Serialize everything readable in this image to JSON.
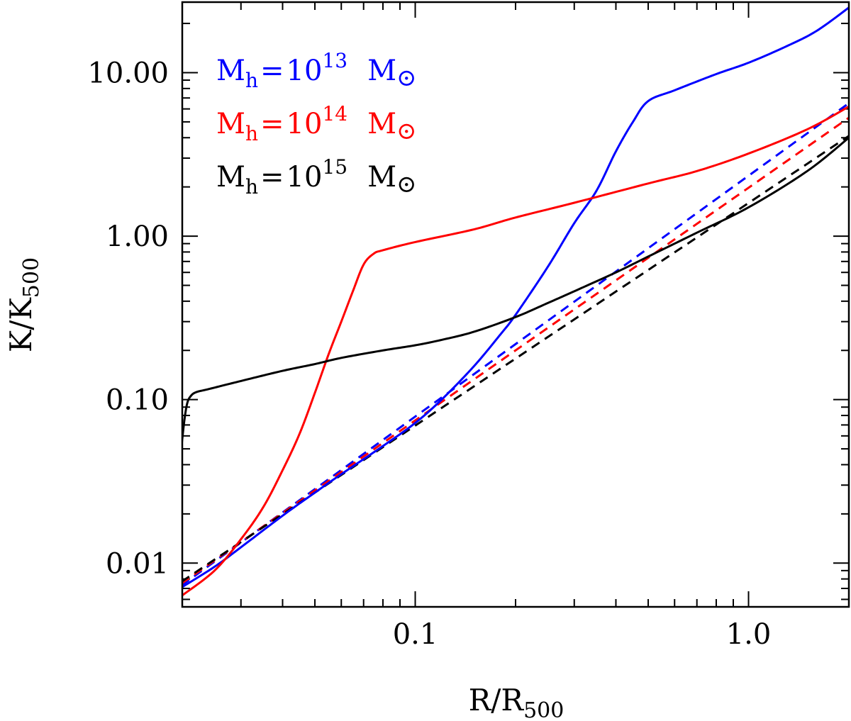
{
  "chart_data": {
    "type": "line",
    "xscale": "log",
    "yscale": "log",
    "xlim": [
      0.02,
      2.0
    ],
    "ylim": [
      0.0054,
      27
    ],
    "xlabel": {
      "base": "R/R",
      "sub": "500"
    },
    "ylabel": {
      "base": "K/K",
      "sub": "500"
    },
    "xticks": [
      {
        "value": 0.1,
        "label": "0.1"
      },
      {
        "value": 1.0,
        "label": "1.0"
      }
    ],
    "yticks": [
      {
        "value": 0.01,
        "label": "0.01"
      },
      {
        "value": 0.1,
        "label": "0.10"
      },
      {
        "value": 1.0,
        "label": "1.00"
      },
      {
        "value": 10.0,
        "label": "10.00"
      }
    ],
    "legend": {
      "location": "top-left",
      "entries": [
        {
          "name": "M_h = 10^13 M_sun",
          "m": "M",
          "msub": "h",
          "eq": "=",
          "base": "10",
          "exp": "13",
          "unit": "M",
          "sun": "⊙",
          "color": "#0000ff"
        },
        {
          "name": "M_h = 10^14 M_sun",
          "m": "M",
          "msub": "h",
          "eq": "=",
          "base": "10",
          "exp": "14",
          "unit": "M",
          "sun": "⊙",
          "color": "#ff0000"
        },
        {
          "name": "M_h = 10^15 M_sun",
          "m": "M",
          "msub": "h",
          "eq": "=",
          "base": "10",
          "exp": "15",
          "unit": "M",
          "sun": "⊙",
          "color": "#000000"
        }
      ]
    },
    "series": [
      {
        "name": "M_h = 10^13 M_sun",
        "color": "#0000ff",
        "style": "solid",
        "x": [
          0.0199,
          0.025,
          0.03,
          0.04,
          0.05,
          0.06,
          0.08,
          0.1,
          0.12,
          0.15,
          0.18,
          0.2,
          0.25,
          0.3,
          0.35,
          0.4,
          0.45,
          0.5,
          0.6,
          0.8,
          1.0,
          1.3,
          1.6,
          2.0
        ],
        "y": [
          0.0071,
          0.0095,
          0.0125,
          0.0195,
          0.027,
          0.035,
          0.052,
          0.072,
          0.1,
          0.16,
          0.25,
          0.33,
          0.65,
          1.2,
          1.9,
          3.3,
          5.0,
          6.7,
          7.8,
          9.8,
          11.5,
          14.5,
          18.0,
          25.0
        ]
      },
      {
        "name": "M_h = 10^14 M_sun",
        "color": "#ff0000",
        "style": "solid",
        "x": [
          0.0199,
          0.025,
          0.03,
          0.035,
          0.04,
          0.045,
          0.05,
          0.055,
          0.06,
          0.065,
          0.07,
          0.075,
          0.08,
          0.1,
          0.15,
          0.2,
          0.3,
          0.5,
          0.7,
          1.0,
          1.5,
          2.0
        ],
        "y": [
          0.0063,
          0.009,
          0.014,
          0.022,
          0.037,
          0.062,
          0.11,
          0.19,
          0.3,
          0.46,
          0.67,
          0.78,
          0.82,
          0.92,
          1.1,
          1.3,
          1.6,
          2.1,
          2.5,
          3.2,
          4.5,
          6.2
        ]
      },
      {
        "name": "M_h = 10^15 M_sun",
        "color": "#000000",
        "style": "solid",
        "x": [
          0.0199,
          0.0203,
          0.0207,
          0.0212,
          0.022,
          0.024,
          0.03,
          0.04,
          0.05,
          0.06,
          0.08,
          0.1,
          0.12,
          0.15,
          0.2,
          0.25,
          0.3,
          0.4,
          0.5,
          0.7,
          1.0,
          1.5,
          2.0
        ],
        "y": [
          0.052,
          0.075,
          0.095,
          0.105,
          0.111,
          0.116,
          0.13,
          0.15,
          0.165,
          0.18,
          0.2,
          0.215,
          0.232,
          0.26,
          0.32,
          0.39,
          0.46,
          0.6,
          0.75,
          1.05,
          1.5,
          2.5,
          4.0
        ]
      },
      {
        "name": "M_h = 10^13 M_sun (dashed)",
        "color": "#0000ff",
        "style": "dashed",
        "x": [
          0.0199,
          2.0
        ],
        "y": [
          0.0073,
          6.5
        ]
      },
      {
        "name": "M_h = 10^14 M_sun (dashed)",
        "color": "#ff0000",
        "style": "dashed",
        "x": [
          0.0199,
          2.0
        ],
        "y": [
          0.0075,
          5.3
        ]
      },
      {
        "name": "M_h = 10^15 M_sun (dashed)",
        "color": "#000000",
        "style": "dashed",
        "x": [
          0.0199,
          2.0
        ],
        "y": [
          0.0077,
          4.1
        ]
      }
    ]
  }
}
